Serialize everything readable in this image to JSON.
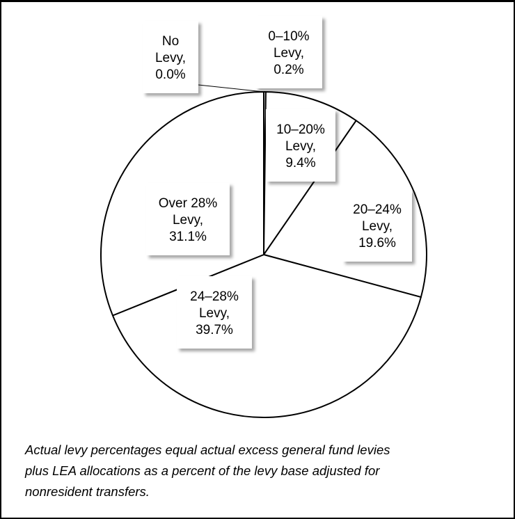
{
  "chart_data": {
    "type": "pie",
    "title": "",
    "slices": [
      {
        "label": "No Levy",
        "value": 0.0,
        "label_lines": [
          "No",
          "Levy,",
          "0.0%"
        ]
      },
      {
        "label": "0–10% Levy",
        "value": 0.2,
        "label_lines": [
          "0–10%",
          "Levy,",
          "0.2%"
        ]
      },
      {
        "label": "10–20% Levy",
        "value": 9.4,
        "label_lines": [
          "10–20%",
          "Levy,",
          "9.4%"
        ]
      },
      {
        "label": "20–24% Levy",
        "value": 19.6,
        "label_lines": [
          "20–24%",
          "Levy,",
          "19.6%"
        ]
      },
      {
        "label": "24–28% Levy",
        "value": 39.7,
        "label_lines": [
          "24–28%",
          "Levy,",
          "39.7%"
        ]
      },
      {
        "label": "Over 28% Levy",
        "value": 31.1,
        "label_lines": [
          "Over 28%",
          "Levy,",
          "31.1%"
        ]
      }
    ],
    "start_angle": "12 o'clock",
    "direction": "clockwise",
    "slice_fill": "#ffffff",
    "slice_stroke": "#000000",
    "label_box_fill": "#ffffff"
  },
  "note": {
    "lines": [
      "Actual levy percentages equal actual excess general fund levies",
      "plus LEA allocations as a percent of the levy base adjusted for",
      "nonresident transfers."
    ]
  }
}
